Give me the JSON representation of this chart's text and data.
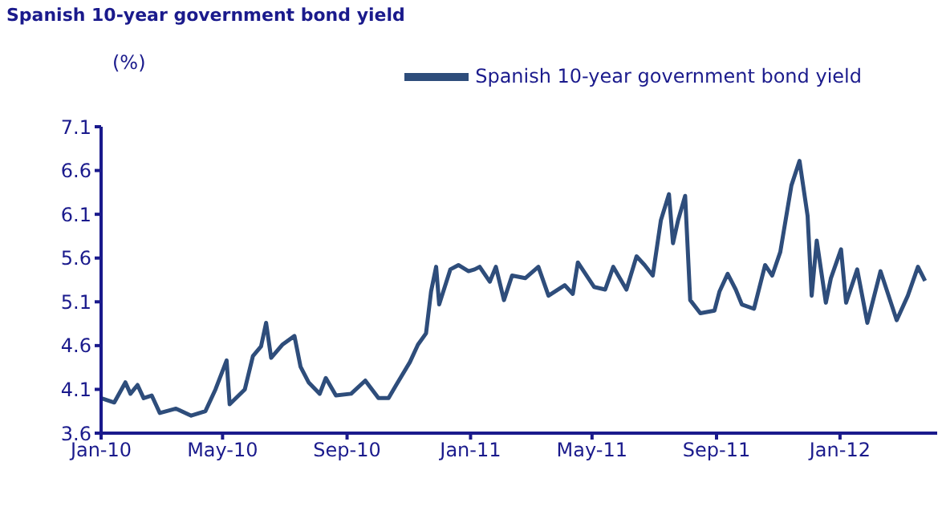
{
  "chart_data": {
    "type": "line",
    "title": "Spanish 10-year government bond yield",
    "ylabel": "(%)",
    "xlim": [
      "2010-01-01",
      "2012-04-06"
    ],
    "xticks": [
      {
        "value": "2010-01-01",
        "label": "Jan-10"
      },
      {
        "value": "2010-05-01",
        "label": "May-10"
      },
      {
        "value": "2010-09-01",
        "label": "Sep-10"
      },
      {
        "value": "2011-01-01",
        "label": "Jan-11"
      },
      {
        "value": "2011-05-01",
        "label": "May-11"
      },
      {
        "value": "2011-09-01",
        "label": "Sep-11"
      },
      {
        "value": "2012-01-01",
        "label": "Jan-12"
      }
    ],
    "ylim": [
      3.6,
      7.1
    ],
    "yticks": [
      3.6,
      4.1,
      4.6,
      5.1,
      5.6,
      6.1,
      6.6,
      7.1
    ],
    "grid": false,
    "legend": "top",
    "marker": "none",
    "line_style": "solid",
    "x": [
      "2010-01-01",
      "2010-01-14",
      "2010-01-25",
      "2010-01-30",
      "2010-02-06",
      "2010-02-12",
      "2010-02-20",
      "2010-02-28",
      "2010-03-16",
      "2010-03-31",
      "2010-04-14",
      "2010-04-24",
      "2010-05-05",
      "2010-05-08",
      "2010-05-23",
      "2010-05-31",
      "2010-06-08",
      "2010-06-13",
      "2010-06-18",
      "2010-06-29",
      "2010-07-11",
      "2010-07-17",
      "2010-07-25",
      "2010-08-05",
      "2010-08-11",
      "2010-08-21",
      "2010-09-05",
      "2010-09-19",
      "2010-10-02",
      "2010-10-12",
      "2010-10-20",
      "2010-11-02",
      "2010-11-10",
      "2010-11-18",
      "2010-11-23",
      "2010-11-28",
      "2010-12-01",
      "2010-12-12",
      "2010-12-20",
      "2010-12-30",
      "2011-01-05",
      "2011-01-10",
      "2011-01-20",
      "2011-01-26",
      "2011-02-03",
      "2011-02-11",
      "2011-02-24",
      "2011-03-09",
      "2011-03-19",
      "2011-04-04",
      "2011-04-12",
      "2011-04-17",
      "2011-05-03",
      "2011-05-14",
      "2011-05-22",
      "2011-06-04",
      "2011-06-14",
      "2011-06-22",
      "2011-06-30",
      "2011-07-08",
      "2011-07-16",
      "2011-07-20",
      "2011-07-25",
      "2011-08-01",
      "2011-08-06",
      "2011-08-16",
      "2011-08-30",
      "2011-09-04",
      "2011-09-12",
      "2011-09-20",
      "2011-09-26",
      "2011-10-08",
      "2011-10-19",
      "2011-10-26",
      "2011-11-03",
      "2011-11-14",
      "2011-11-22",
      "2011-11-30",
      "2011-12-04",
      "2011-12-09",
      "2011-12-18",
      "2011-12-23",
      "2012-01-02",
      "2012-01-07",
      "2012-01-18",
      "2012-01-28",
      "2012-02-10",
      "2012-02-26",
      "2012-03-08",
      "2012-03-18",
      "2012-03-25"
    ],
    "series": [
      {
        "name": "Spanish 10-year government bond yield",
        "color": "#2e4d7b",
        "values": [
          4.0,
          3.95,
          4.18,
          4.05,
          4.15,
          4.0,
          4.03,
          3.83,
          3.88,
          3.8,
          3.85,
          4.1,
          4.43,
          3.93,
          4.1,
          4.48,
          4.59,
          4.86,
          4.46,
          4.61,
          4.71,
          4.36,
          4.18,
          4.05,
          4.23,
          4.03,
          4.05,
          4.2,
          4.0,
          4.0,
          4.16,
          4.41,
          4.61,
          4.74,
          5.22,
          5.5,
          5.07,
          5.47,
          5.52,
          5.45,
          5.47,
          5.5,
          5.33,
          5.5,
          5.12,
          5.4,
          5.37,
          5.5,
          5.17,
          5.29,
          5.19,
          5.55,
          5.27,
          5.24,
          5.5,
          5.24,
          5.62,
          5.52,
          5.4,
          6.03,
          6.33,
          5.77,
          6.03,
          6.31,
          5.12,
          4.97,
          5.0,
          5.22,
          5.42,
          5.24,
          5.07,
          5.02,
          5.52,
          5.4,
          5.67,
          6.43,
          6.71,
          6.08,
          5.17,
          5.8,
          5.09,
          5.37,
          5.7,
          5.09,
          5.47,
          4.86,
          5.45,
          4.89,
          5.17,
          5.5,
          5.34
        ]
      }
    ]
  }
}
